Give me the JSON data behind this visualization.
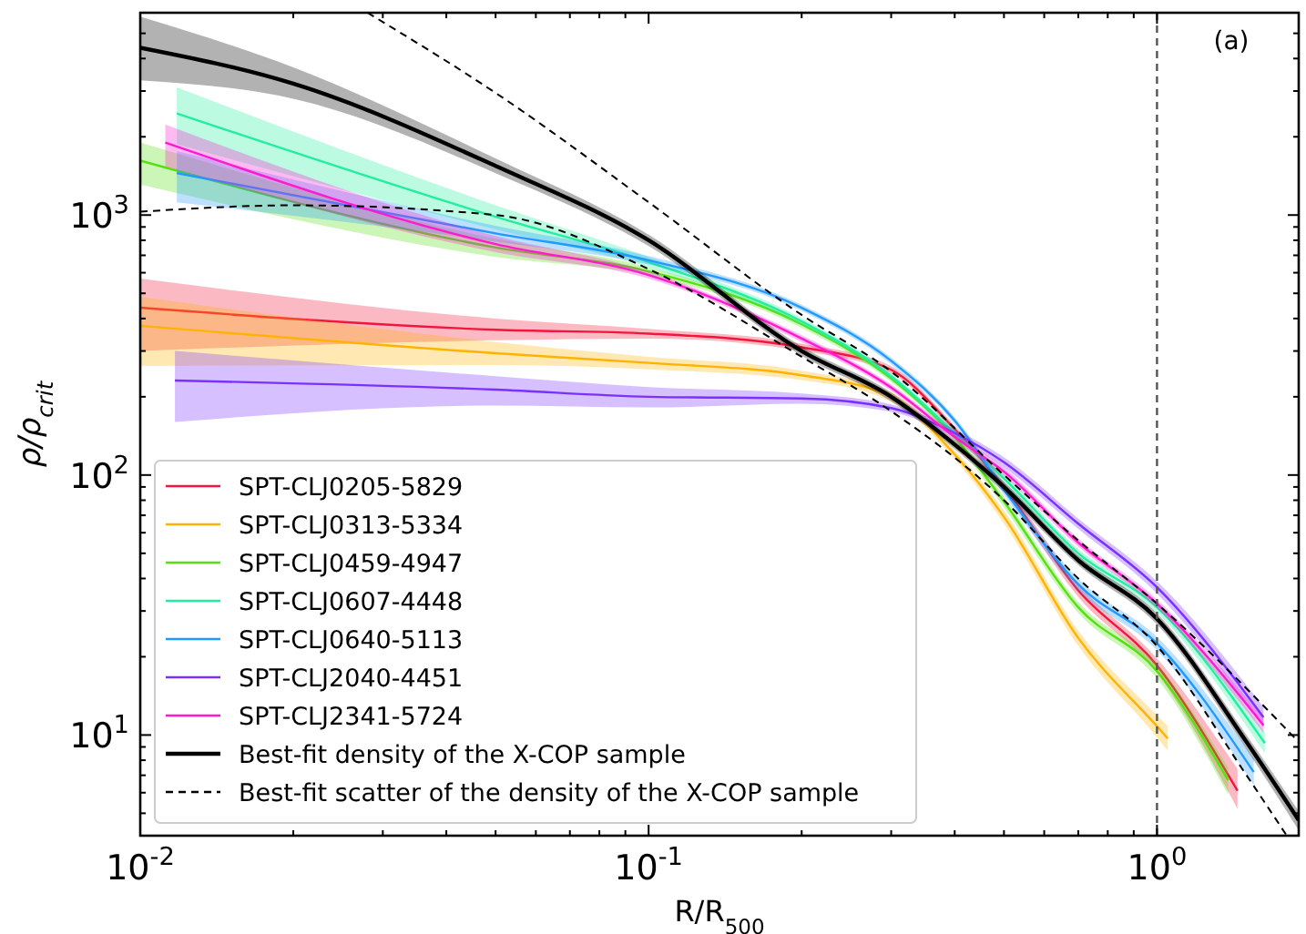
{
  "chart_data": {
    "type": "line",
    "xlabel": "R/R$_{500}$",
    "ylabel": "ρ/ρ$_{crit}$",
    "log": "xy",
    "grid": false,
    "legend": "bottom left",
    "line_style": "solid",
    "xlim": [
      0.01,
      1.9
    ],
    "ylim": [
      4.1,
      6000
    ],
    "xticks": [
      {
        "value": 0.01,
        "label": "10$^{-2}$"
      },
      {
        "value": 0.02,
        "label": null
      },
      {
        "value": 0.03,
        "label": null
      },
      {
        "value": 0.04,
        "label": null
      },
      {
        "value": 0.05,
        "label": null
      },
      {
        "value": 0.06,
        "label": null
      },
      {
        "value": 0.07,
        "label": null
      },
      {
        "value": 0.08,
        "label": null
      },
      {
        "value": 0.09,
        "label": null
      },
      {
        "value": 0.1,
        "label": "10$^{-1}$"
      },
      {
        "value": 0.2,
        "label": null
      },
      {
        "value": 0.3,
        "label": null
      },
      {
        "value": 0.4,
        "label": null
      },
      {
        "value": 0.5,
        "label": null
      },
      {
        "value": 0.6,
        "label": null
      },
      {
        "value": 0.7,
        "label": null
      },
      {
        "value": 0.8,
        "label": null
      },
      {
        "value": 0.9,
        "label": null
      },
      {
        "value": 1,
        "label": "10$^{0}$"
      }
    ],
    "yticks": [
      {
        "value": 5,
        "label": null
      },
      {
        "value": 6,
        "label": null
      },
      {
        "value": 7,
        "label": null
      },
      {
        "value": 8,
        "label": null
      },
      {
        "value": 9,
        "label": null
      },
      {
        "value": 10,
        "label": "10$^{1}$"
      },
      {
        "value": 20,
        "label": null
      },
      {
        "value": 30,
        "label": null
      },
      {
        "value": 40,
        "label": null
      },
      {
        "value": 50,
        "label": null
      },
      {
        "value": 60,
        "label": null
      },
      {
        "value": 70,
        "label": null
      },
      {
        "value": 80,
        "label": null
      },
      {
        "value": 90,
        "label": null
      },
      {
        "value": 100,
        "label": "10$^{2}$"
      },
      {
        "value": 200,
        "label": null
      },
      {
        "value": 300,
        "label": null
      },
      {
        "value": 400,
        "label": null
      },
      {
        "value": 500,
        "label": null
      },
      {
        "value": 600,
        "label": null
      },
      {
        "value": 700,
        "label": null
      },
      {
        "value": 800,
        "label": null
      },
      {
        "value": 900,
        "label": null
      },
      {
        "value": 1000,
        "label": "10$^{3}$"
      },
      {
        "value": 2000,
        "label": null
      },
      {
        "value": 3000,
        "label": null
      },
      {
        "value": 4000,
        "label": null
      },
      {
        "value": 5000,
        "label": null
      }
    ],
    "ref_lines": [
      {
        "axis": "x",
        "value": 1,
        "label": null,
        "color": "#555555",
        "line_style": "dashed"
      }
    ],
    "annotations": [
      "(a)"
    ],
    "series": [
      {
        "name": "SPT-CLJ0205-5829",
        "color": "#f2163c",
        "x": [
          0.01,
          0.05,
          0.1,
          0.2,
          0.3,
          0.4,
          0.5,
          0.7,
          1.0,
          1.44
        ],
        "values": [
          440,
          362,
          350,
          310,
          254,
          150,
          90,
          36,
          18.5,
          6.1
        ],
        "lower": [
          300,
          330,
          335,
          300,
          246,
          145,
          86,
          34,
          17.3,
          5.2
        ],
        "upper": [
          570,
          400,
          365,
          320,
          262,
          155,
          94,
          38,
          19.7,
          7.4
        ]
      },
      {
        "name": "SPT-CLJ0313-5334",
        "color": "#ffb300",
        "x": [
          0.01,
          0.05,
          0.1,
          0.2,
          0.3,
          0.4,
          0.5,
          0.7,
          1.0,
          1.05
        ],
        "values": [
          375,
          294,
          270,
          242,
          200,
          120,
          69,
          23.6,
          10.8,
          9.7
        ],
        "lower": [
          263,
          265,
          255,
          232,
          192,
          115,
          65,
          22,
          9.8,
          8.7
        ],
        "upper": [
          485,
          325,
          285,
          252,
          208,
          125,
          73,
          25.2,
          11.9,
          10.8
        ]
      },
      {
        "name": "SPT-CLJ0459-4947",
        "color": "#55e010",
        "x": [
          0.01,
          0.05,
          0.1,
          0.2,
          0.3,
          0.4,
          0.5,
          0.7,
          1.0,
          1.38
        ],
        "values": [
          1620,
          750,
          607,
          380,
          235,
          140,
          79,
          31,
          17.6,
          6.7
        ],
        "lower": [
          1310,
          690,
          585,
          368,
          228,
          135,
          75,
          29.5,
          16.5,
          5.9
        ],
        "upper": [
          1900,
          810,
          630,
          392,
          242,
          145,
          83,
          32.5,
          18.7,
          7.5
        ]
      },
      {
        "name": "SPT-CLJ0607-4448",
        "color": "#22eea0",
        "x": [
          0.0118,
          0.05,
          0.1,
          0.2,
          0.3,
          0.4,
          0.5,
          0.7,
          1.0,
          1.63
        ],
        "values": [
          2460,
          985,
          660,
          390,
          240,
          145,
          97,
          50,
          31,
          9.3
        ],
        "lower": [
          1870,
          880,
          630,
          378,
          233,
          140,
          93,
          48,
          29.5,
          8.5
        ],
        "upper": [
          3100,
          1090,
          690,
          402,
          247,
          150,
          101,
          52,
          32.5,
          10.2
        ]
      },
      {
        "name": "SPT-CLJ0640-5113",
        "color": "#2299ff",
        "x": [
          0.0118,
          0.05,
          0.1,
          0.2,
          0.3,
          0.4,
          0.5,
          0.7,
          1.0,
          1.55
        ],
        "values": [
          1450,
          850,
          670,
          440,
          275,
          162,
          88,
          38,
          22.5,
          7.2
        ],
        "lower": [
          1120,
          790,
          645,
          428,
          267,
          157,
          84,
          36,
          21.2,
          6.4
        ],
        "upper": [
          1760,
          910,
          695,
          452,
          283,
          167,
          92,
          40,
          23.8,
          8.1
        ]
      },
      {
        "name": "SPT-CLJ2040-4451",
        "color": "#7b30ff",
        "x": [
          0.0117,
          0.05,
          0.1,
          0.2,
          0.3,
          0.4,
          0.5,
          0.7,
          1.0,
          1.62
        ],
        "values": [
          231,
          213,
          200,
          197,
          181,
          145,
          112,
          65,
          37,
          11.7
        ],
        "lower": [
          160,
          185,
          182,
          188,
          175,
          140,
          107,
          62,
          35,
          10.7
        ],
        "upper": [
          300,
          240,
          218,
          206,
          187,
          150,
          117,
          68,
          39,
          12.8
        ]
      },
      {
        "name": "SPT-CLJ2341-5724",
        "color": "#ff1ad0",
        "x": [
          0.0112,
          0.05,
          0.1,
          0.2,
          0.3,
          0.4,
          0.5,
          0.7,
          1.0,
          1.62
        ],
        "values": [
          1900,
          773,
          588,
          335,
          217,
          140,
          103,
          55,
          32,
          10.9
        ],
        "lower": [
          1540,
          720,
          570,
          325,
          211,
          136,
          99,
          53,
          30.8,
          10.2
        ],
        "upper": [
          2230,
          830,
          606,
          345,
          223,
          144,
          107,
          57,
          33.2,
          11.6
        ]
      },
      {
        "name": "Best-fit density of the X-COP sample",
        "color": "#000000",
        "x": [
          0.01,
          0.02,
          0.05,
          0.1,
          0.2,
          0.3,
          0.4,
          0.5,
          0.7,
          1.0,
          1.5,
          1.9
        ],
        "values": [
          4400,
          3200,
          1545,
          800,
          300,
          200,
          131,
          90,
          47,
          28,
          9.4,
          4.7
        ],
        "lower": [
          3300,
          2800,
          1450,
          760,
          288,
          192,
          126,
          86,
          45,
          26.6,
          8.8,
          4.3
        ],
        "upper": [
          5800,
          3700,
          1650,
          840,
          312,
          208,
          136,
          94,
          49,
          29.4,
          10,
          5.1
        ]
      },
      {
        "name": "Best-fit scatter of the density of the X-COP sample",
        "color": "#000000",
        "line_style": "dashed",
        "x": [
          0.028,
          0.05,
          0.1,
          0.2,
          0.3,
          0.5,
          0.7,
          1.0,
          1.9
        ],
        "values": [
          6000,
          2950,
          1120,
          413,
          250,
          100,
          56,
          32,
          9.4
        ]
      },
      {
        "color": "#000000",
        "line_style": "dashed",
        "x": [
          0.01,
          0.02,
          0.05,
          0.1,
          0.2,
          0.3,
          0.5,
          0.7,
          1.0,
          1.5,
          1.8
        ],
        "values": [
          1030,
          1090,
          1000,
          620,
          285,
          176,
          80,
          40,
          22,
          7,
          4.1
        ]
      }
    ]
  }
}
